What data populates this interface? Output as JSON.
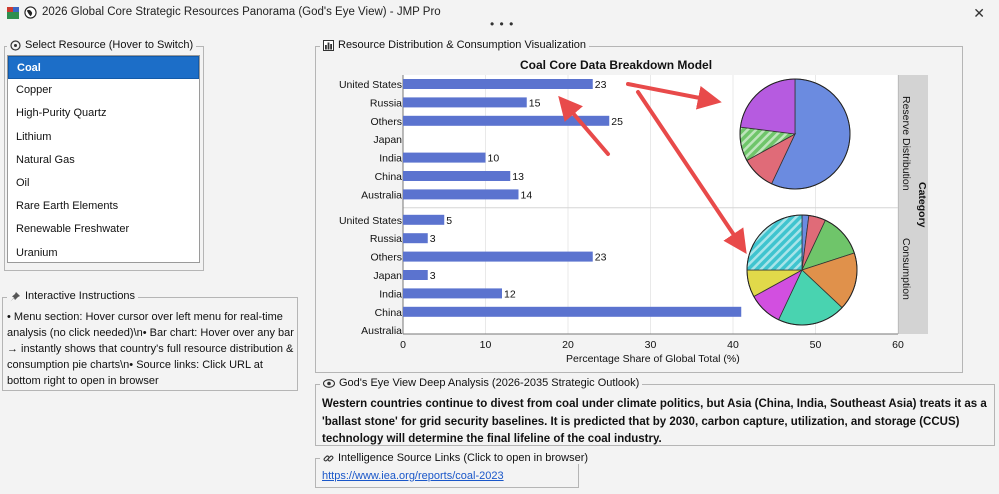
{
  "window": {
    "title": "2026 Global Core Strategic Resources Panorama (God's Eye View) - JMP Pro",
    "menu_dots": "• • •"
  },
  "resource_panel": {
    "title": "Select Resource (Hover to Switch)",
    "items": [
      "Coal",
      "Copper",
      "High-Purity Quartz",
      "Lithium",
      "Natural Gas",
      "Oil",
      "Rare Earth Elements",
      "Renewable Freshwater",
      "Uranium"
    ],
    "selected": "Coal"
  },
  "instructions_panel": {
    "title": "Interactive Instructions",
    "text": "• Menu section: Hover cursor over left menu for real-time analysis (no click needed)\\n• Bar chart: Hover over any bar → instantly shows that country's full resource distribution & consumption pie charts\\n• Source links: Click URL at bottom right to open in browser"
  },
  "viz_panel": {
    "title": "Resource Distribution & Consumption Visualization"
  },
  "chart_data": [
    {
      "type": "bar",
      "title": "Coal Core Data Breakdown Model",
      "xlabel": "Percentage Share of Global Total (%)",
      "xlim": [
        0,
        60
      ],
      "x_ticks": [
        "0",
        "10",
        "20",
        "30",
        "40",
        "50",
        "60"
      ],
      "group_label": "Category",
      "groups": [
        {
          "name": "Reserve Distribution",
          "categories": [
            "United States",
            "Russia",
            "Others",
            "Japan",
            "India",
            "China",
            "Australia"
          ],
          "values": [
            23,
            15,
            25,
            null,
            10,
            13,
            14
          ],
          "labels": [
            "23",
            "15",
            "25",
            "",
            "10",
            "13",
            "14"
          ]
        },
        {
          "name": "Consumption",
          "categories": [
            "United States",
            "Russia",
            "Others",
            "Japan",
            "India",
            "China",
            "Australia"
          ],
          "values": [
            5,
            3,
            23,
            3,
            12,
            41,
            null
          ],
          "labels": [
            "5",
            "3",
            "23",
            "3",
            "12",
            "",
            ""
          ]
        }
      ],
      "bar_color": "#5b73cf"
    },
    {
      "type": "pie",
      "name": "Reserve Distribution",
      "slices": [
        {
          "value": 57,
          "color": "#6b8be0"
        },
        {
          "value": 10,
          "color": "#e06b78"
        },
        {
          "value": 10,
          "color": "#6fc56a",
          "hatched": true
        },
        {
          "value": 23,
          "color": "#b65be0"
        }
      ]
    },
    {
      "type": "pie",
      "name": "Consumption",
      "slices": [
        {
          "value": 2,
          "color": "#6b8be0"
        },
        {
          "value": 5,
          "color": "#e06b78"
        },
        {
          "value": 13,
          "color": "#6fc56a"
        },
        {
          "value": 17,
          "color": "#e0914b"
        },
        {
          "value": 20,
          "color": "#49d3b0"
        },
        {
          "value": 10,
          "color": "#d24fe0"
        },
        {
          "value": 8,
          "color": "#e1d94a"
        },
        {
          "value": 25,
          "color": "#3fc4cf",
          "hatched": true
        }
      ]
    }
  ],
  "analysis_panel": {
    "title": "God's Eye View Deep Analysis (2026-2035 Strategic Outlook)",
    "text": "Western countries continue to divest from coal under climate politics, but Asia (China, India, Southeast Asia) treats it as a 'ballast stone' for grid security baselines. It is predicted that by 2030, carbon capture, utilization, and storage (CCUS) technology will determine the final lifeline of the coal industry."
  },
  "source_panel": {
    "title": "Intelligence Source Links (Click to open in browser)",
    "link": "https://www.iea.org/reports/coal-2023"
  },
  "colors": {
    "accent": "#1c6ec8",
    "bar": "#5b73cf",
    "arrow": "#e84a4a",
    "link": "#1a57c9"
  }
}
